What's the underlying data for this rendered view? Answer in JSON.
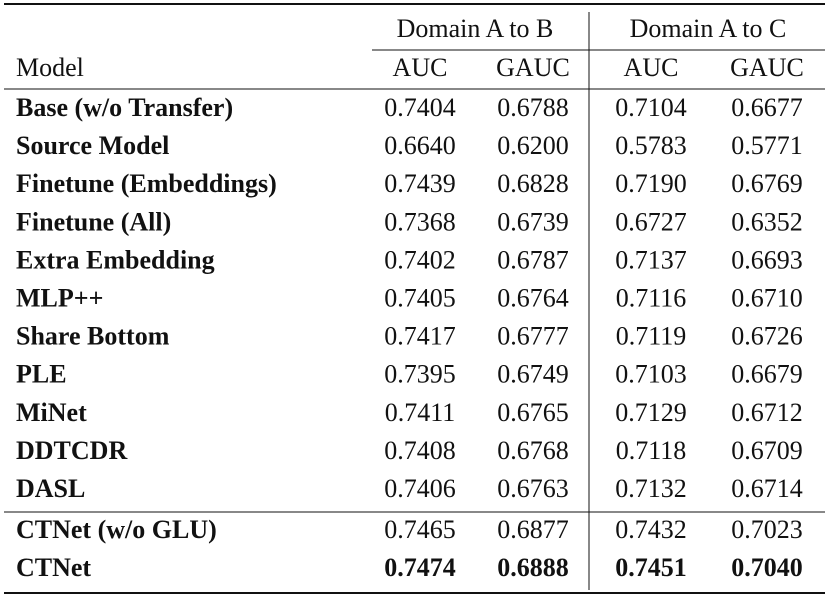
{
  "table": {
    "group_headers": [
      "Domain A to B",
      "Domain A to C"
    ],
    "columns": [
      "Model",
      "AUC",
      "GAUC",
      "AUC",
      "GAUC"
    ],
    "rows": [
      [
        "Base (w/o Transfer)",
        "0.7404",
        "0.6788",
        "0.7104",
        "0.6677"
      ],
      [
        "Source Model",
        "0.6640",
        "0.6200",
        "0.5783",
        "0.5771"
      ],
      [
        "Finetune (Embeddings)",
        "0.7439",
        "0.6828",
        "0.7190",
        "0.6769"
      ],
      [
        "Finetune (All)",
        "0.7368",
        "0.6739",
        "0.6727",
        "0.6352"
      ],
      [
        "Extra Embedding",
        "0.7402",
        "0.6787",
        "0.7137",
        "0.6693"
      ],
      [
        "MLP++",
        "0.7405",
        "0.6764",
        "0.7116",
        "0.6710"
      ],
      [
        "Share Bottom",
        "0.7417",
        "0.6777",
        "0.7119",
        "0.6726"
      ],
      [
        "PLE",
        "0.7395",
        "0.6749",
        "0.7103",
        "0.6679"
      ],
      [
        "MiNet",
        "0.7411",
        "0.6765",
        "0.7129",
        "0.6712"
      ],
      [
        "DDTCDR",
        "0.7408",
        "0.6768",
        "0.7118",
        "0.6709"
      ],
      [
        "DASL",
        "0.7406",
        "0.6763",
        "0.7132",
        "0.6714"
      ],
      [
        "CTNet (w/o GLU)",
        "0.7465",
        "0.6877",
        "0.7432",
        "0.7023"
      ],
      [
        "CTNet",
        "0.7474",
        "0.6888",
        "0.7451",
        "0.7040"
      ]
    ]
  }
}
